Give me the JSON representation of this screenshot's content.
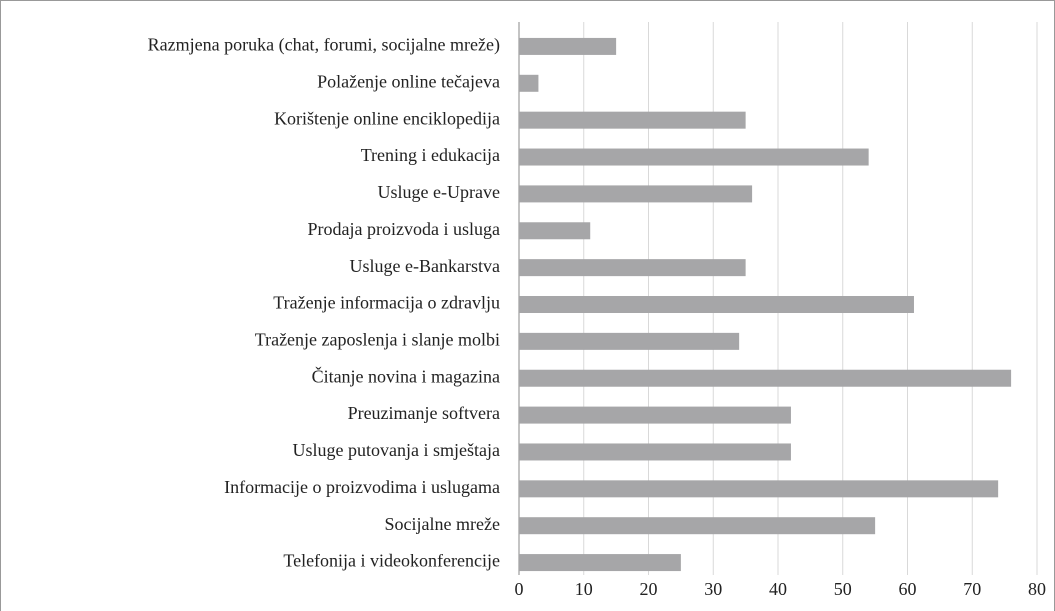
{
  "chart_data": {
    "type": "barh",
    "categories": [
      "Razmjena poruka (chat, forumi, socijalne mreže)",
      "Polaženje online tečajeva",
      "Korištenje online enciklopedija",
      "Trening i edukacija",
      "Usluge e-Uprave",
      "Prodaja proizvoda i usluga",
      "Usluge e-Bankarstva",
      "Traženje informacija o zdravlju",
      "Traženje zaposlenja i slanje molbi",
      "Čitanje novina i magazina",
      "Preuzimanje softvera",
      "Usluge putovanja i smještaja",
      "Informacije o proizvodima i uslugama",
      "Socijalne mreže",
      "Telefonija i videokonferencije"
    ],
    "values": [
      15,
      3,
      35,
      54,
      36,
      11,
      35,
      61,
      34,
      76,
      42,
      42,
      74,
      55,
      25
    ],
    "color": "#a6a6a8",
    "xlim": [
      0,
      80
    ],
    "xticks": [
      0,
      10,
      20,
      30,
      40,
      50,
      60,
      70,
      80
    ],
    "grid": true
  }
}
